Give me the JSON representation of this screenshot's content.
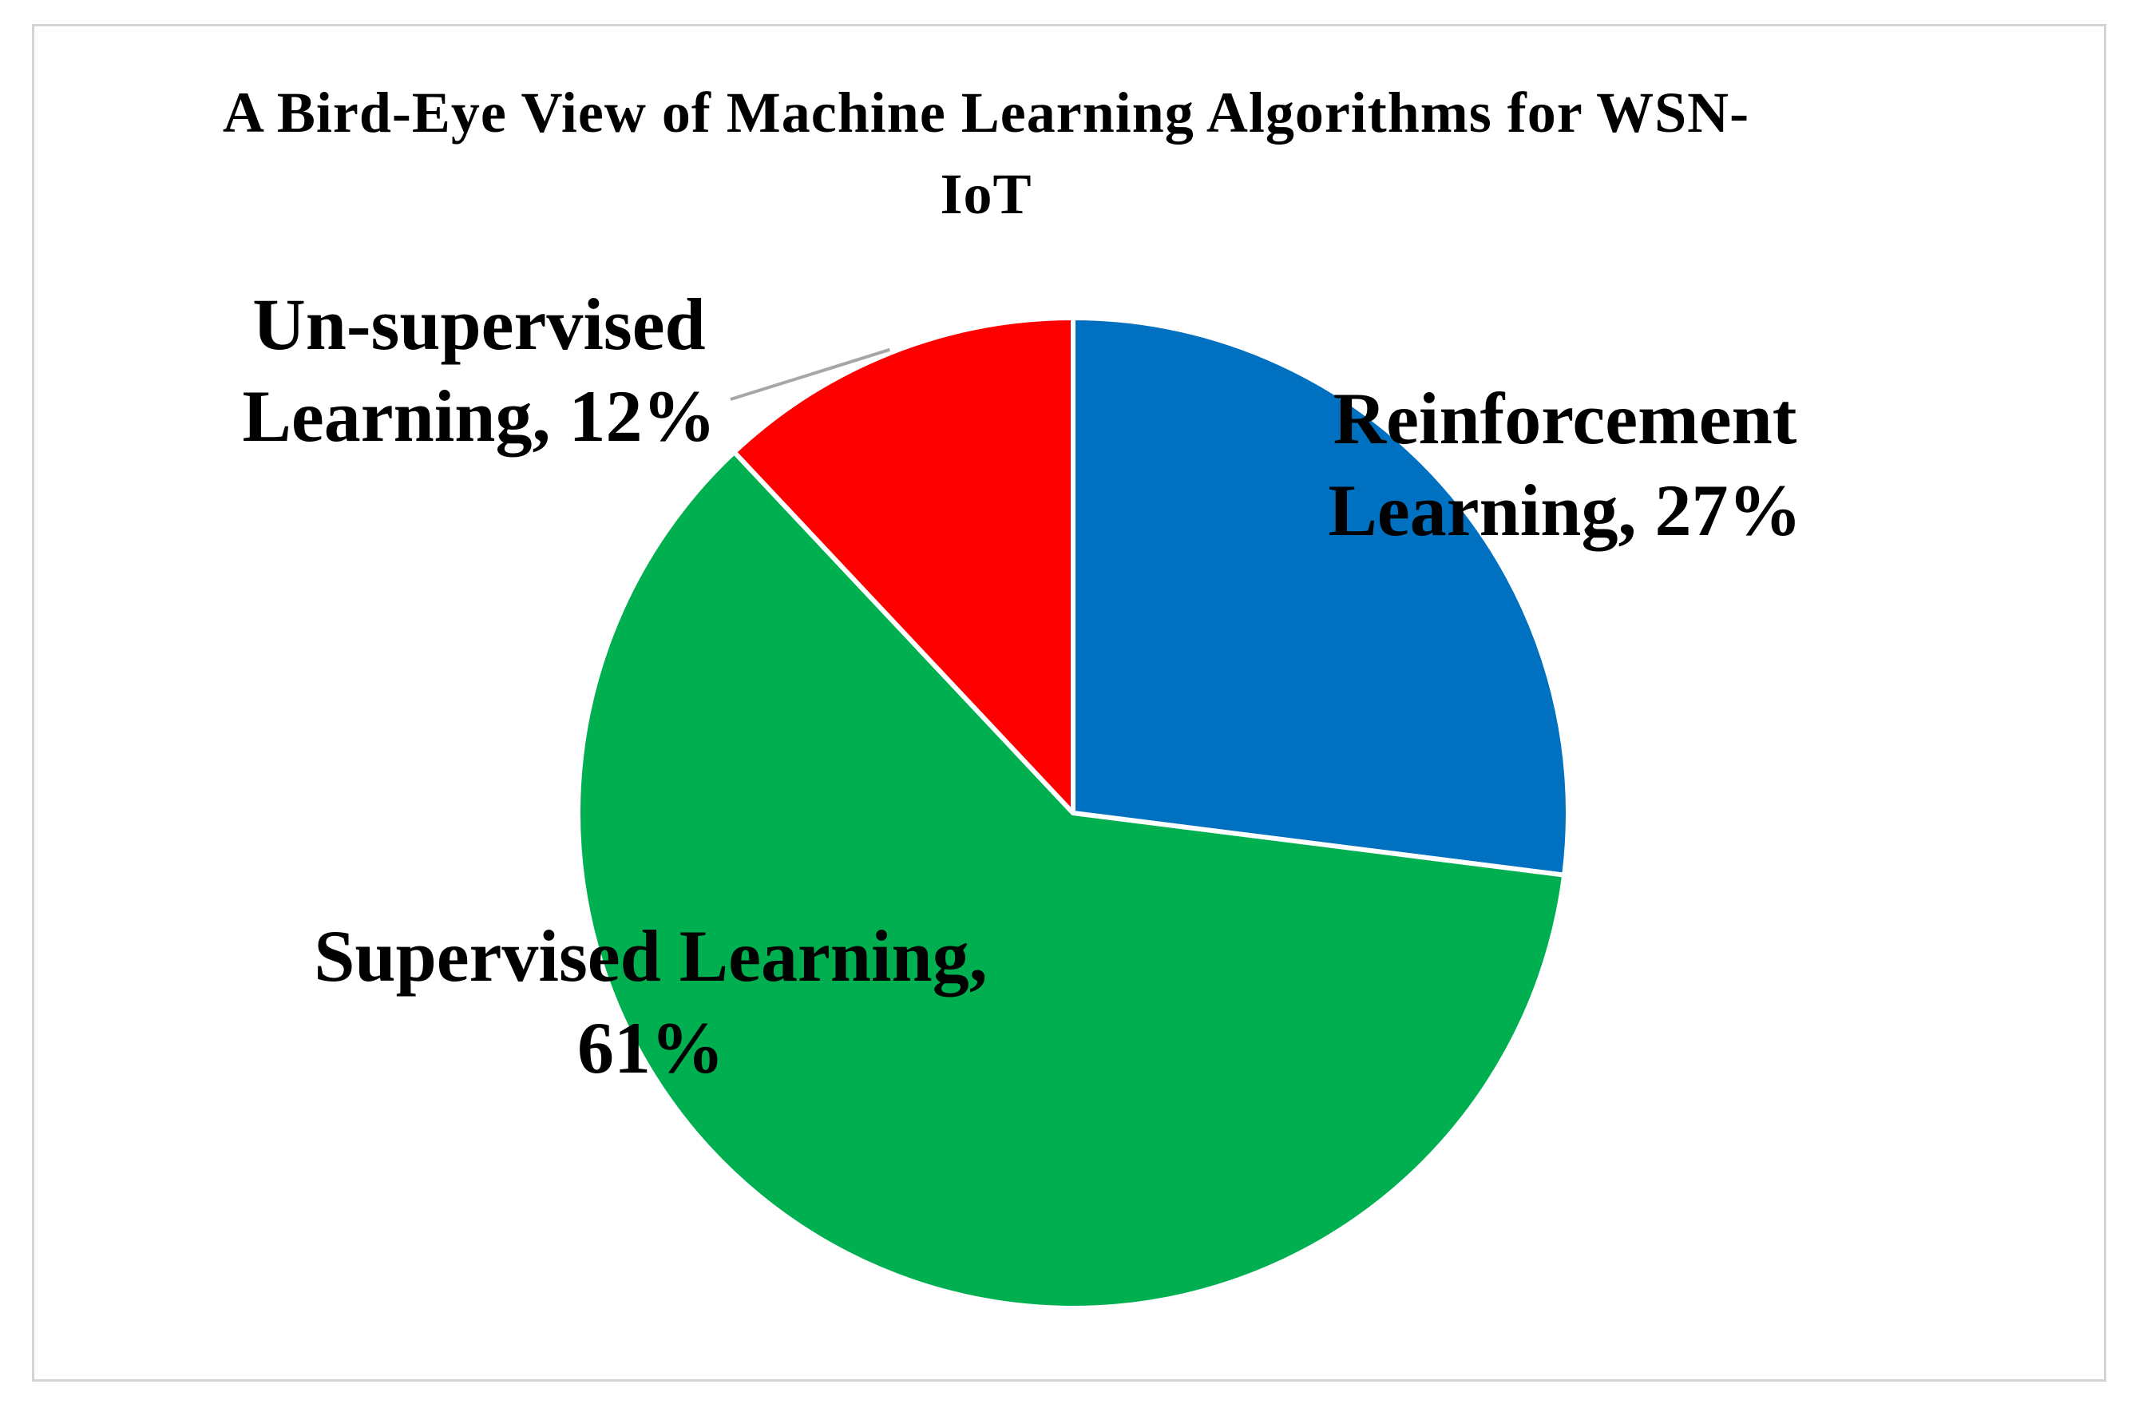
{
  "chart_data": {
    "type": "pie",
    "title": "A Bird-Eye View of Machine Learning Algorithms for WSN-IoT",
    "slices": [
      {
        "name": "Reinforcement Learning",
        "value": 27,
        "label_lines": [
          "Reinforcement",
          "Learning, 27%"
        ],
        "color": "#0070c0"
      },
      {
        "name": "Supervised Learning",
        "value": 61,
        "label_lines": [
          "Supervised Learning,",
          "61%"
        ],
        "color": "#00b050"
      },
      {
        "name": "Un-supervised Learning",
        "value": 12,
        "label_lines": [
          "Un-supervised",
          "Learning, 12%"
        ],
        "color": "#ff0000"
      }
    ],
    "start_angle": "12 o'clock",
    "direction": "clockwise",
    "legend": "none",
    "label_format": "category, percentage"
  }
}
